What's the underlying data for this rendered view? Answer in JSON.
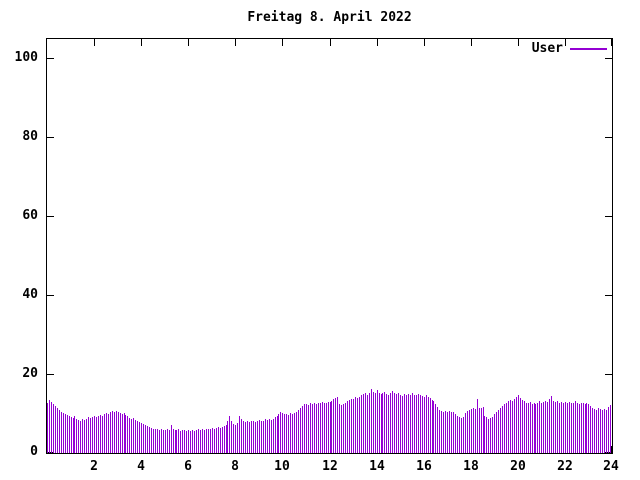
{
  "title": "Freitag 8. April 2022",
  "legend": {
    "label": "User",
    "color": "#9400d3"
  },
  "colors": {
    "bar": "#9400d3",
    "axis": "#000000",
    "background": "#ffffff",
    "text": "#000000"
  },
  "chart_data": {
    "type": "bar",
    "title": "Freitag 8. April 2022",
    "xlabel": "",
    "ylabel": "",
    "x_unit": "hour-of-day",
    "interval_minutes": 5,
    "xlim": [
      0,
      24
    ],
    "ylim": [
      0,
      100
    ],
    "x_ticks": [
      2,
      4,
      6,
      8,
      10,
      12,
      14,
      16,
      18,
      20,
      22,
      24
    ],
    "y_ticks": [
      0,
      20,
      40,
      60,
      80,
      100
    ],
    "grid": false,
    "legend_position": "top-right-inside",
    "series": [
      {
        "name": "User",
        "color": "#9400d3",
        "values": [
          12.6,
          13.4,
          12.9,
          12.3,
          11.8,
          11.3,
          10.8,
          10.4,
          10.1,
          9.8,
          9.6,
          9.4,
          9.2,
          8.9,
          9.3,
          8.7,
          8.4,
          8.2,
          8.5,
          8.3,
          8.7,
          9.0,
          8.8,
          9.1,
          9.3,
          9.0,
          9.4,
          9.7,
          9.5,
          9.9,
          10.2,
          9.8,
          10.3,
          10.6,
          10.4,
          10.7,
          10.5,
          10.2,
          9.9,
          10.1,
          9.6,
          9.3,
          8.9,
          8.6,
          8.8,
          8.4,
          8.1,
          7.9,
          7.7,
          7.4,
          7.1,
          6.8,
          6.5,
          6.3,
          6.1,
          6.2,
          6.0,
          5.9,
          6.1,
          5.8,
          5.9,
          6.0,
          5.8,
          7.0,
          6.1,
          5.9,
          5.8,
          6.0,
          5.7,
          5.9,
          5.8,
          5.7,
          5.8,
          5.6,
          5.9,
          5.7,
          5.8,
          6.0,
          5.9,
          6.1,
          5.8,
          6.0,
          6.2,
          6.1,
          6.3,
          6.1,
          6.4,
          6.6,
          6.3,
          6.7,
          6.9,
          7.2,
          8.1,
          9.3,
          8.0,
          7.4,
          7.2,
          7.5,
          9.4,
          8.6,
          8.2,
          7.9,
          8.1,
          7.8,
          8.0,
          8.2,
          7.9,
          8.1,
          8.3,
          8.0,
          8.2,
          8.5,
          8.3,
          8.6,
          8.4,
          8.7,
          9.0,
          9.4,
          10.0,
          10.5,
          10.2,
          9.8,
          10.0,
          9.7,
          10.1,
          9.9,
          10.2,
          10.5,
          10.8,
          11.4,
          12.0,
          12.3,
          12.4,
          12.2,
          12.6,
          12.4,
          12.7,
          12.5,
          12.8,
          12.6,
          12.9,
          12.7,
          12.8,
          13.0,
          13.0,
          13.3,
          13.6,
          14.0,
          14.3,
          12.3,
          12.1,
          12.4,
          12.6,
          13.1,
          13.4,
          13.6,
          13.8,
          14.1,
          13.9,
          14.3,
          14.6,
          14.9,
          15.1,
          14.8,
          15.3,
          16.2,
          15.4,
          15.1,
          15.9,
          15.2,
          14.9,
          15.2,
          15.5,
          15.0,
          14.8,
          15.1,
          15.8,
          15.2,
          14.9,
          15.1,
          14.8,
          14.5,
          14.9,
          14.6,
          15.0,
          14.7,
          15.1,
          14.8,
          14.6,
          14.9,
          14.7,
          14.4,
          14.1,
          14.7,
          14.3,
          13.9,
          13.5,
          13.1,
          12.4,
          11.6,
          10.9,
          10.7,
          10.5,
          10.6,
          10.4,
          10.6,
          10.3,
          10.5,
          9.8,
          9.3,
          9.0,
          8.9,
          9.2,
          10.2,
          10.7,
          11.0,
          11.2,
          11.4,
          11.1,
          13.8,
          11.5,
          11.3,
          11.6,
          9.4,
          9.0,
          8.7,
          8.9,
          9.2,
          9.8,
          10.4,
          11.0,
          11.4,
          11.8,
          12.4,
          12.8,
          13.1,
          13.5,
          13.2,
          13.8,
          14.2,
          14.6,
          13.9,
          13.4,
          13.1,
          12.8,
          12.6,
          12.9,
          12.5,
          12.7,
          12.4,
          12.8,
          13.1,
          12.7,
          12.9,
          13.3,
          13.0,
          13.6,
          14.4,
          13.2,
          12.9,
          13.1,
          12.8,
          13.0,
          12.7,
          13.0,
          12.7,
          12.9,
          12.6,
          12.8,
          13.1,
          12.7,
          12.5,
          12.8,
          12.6,
          12.4,
          12.6,
          12.3,
          12.0,
          11.5,
          11.2,
          11.0,
          11.3,
          11.1,
          10.9,
          11.2,
          11.0,
          11.6,
          12.1
        ]
      }
    ]
  }
}
